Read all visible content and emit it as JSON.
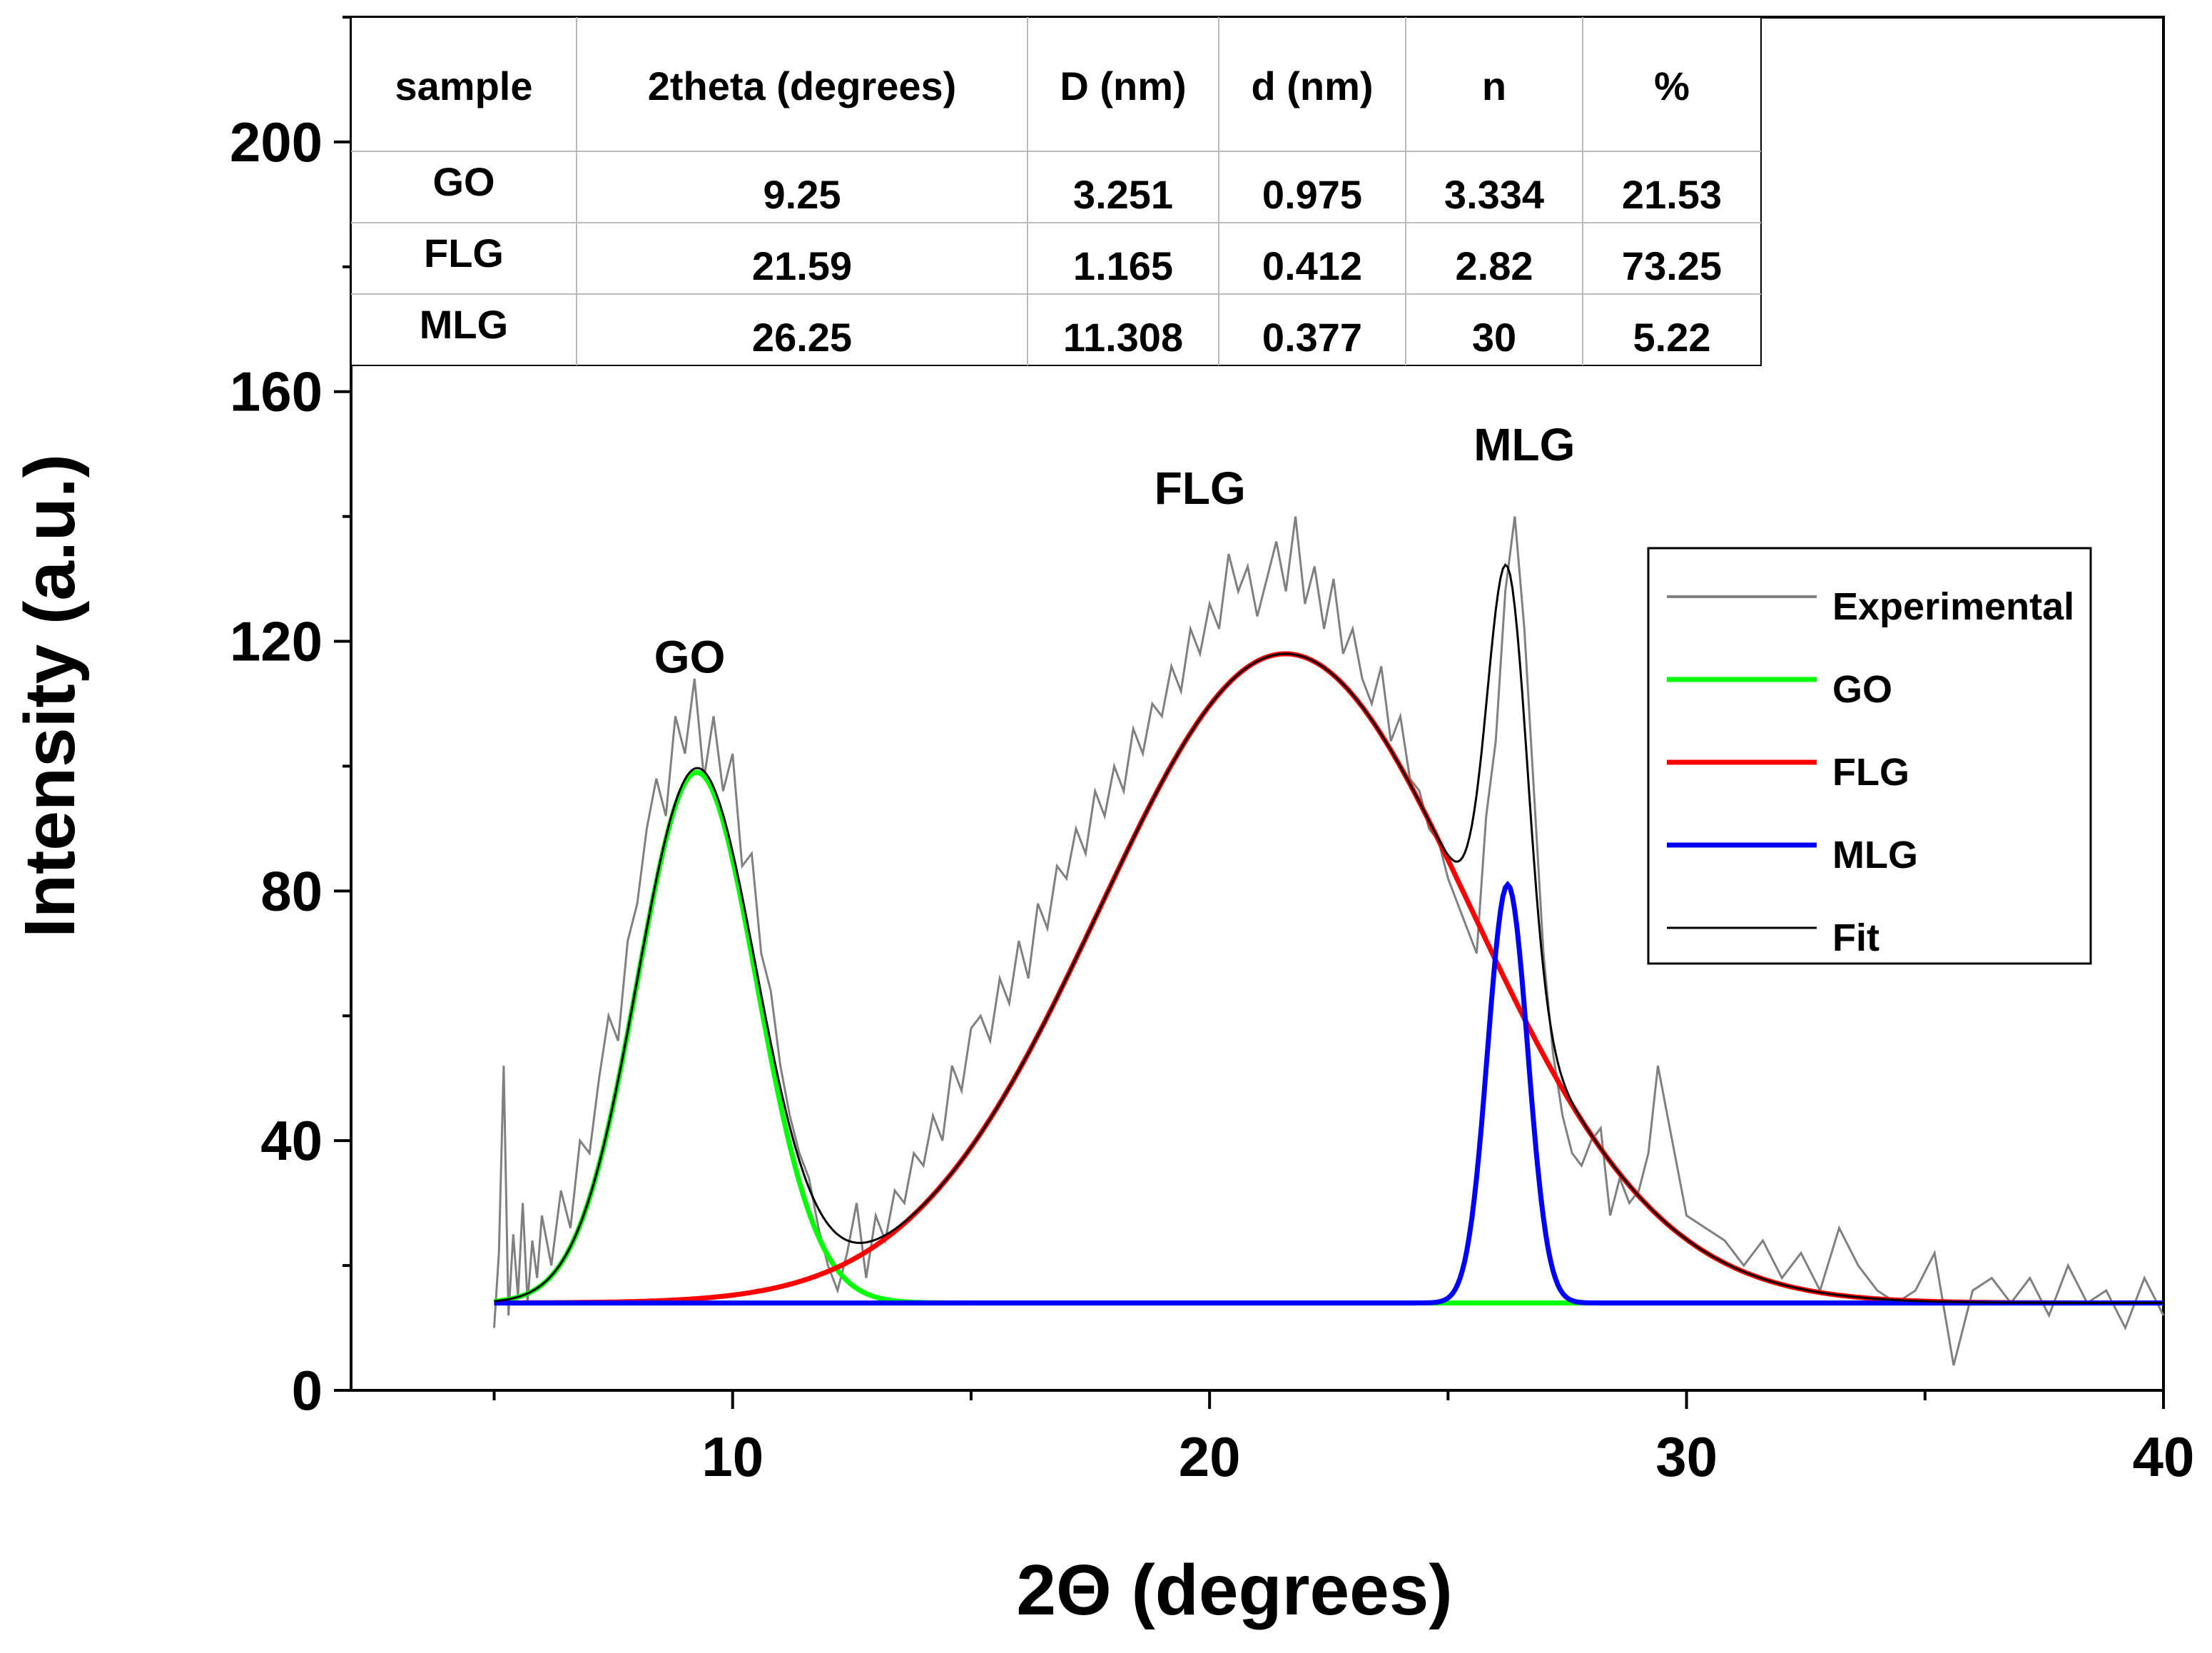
{
  "chart_data": {
    "type": "line",
    "title": "",
    "xlabel": "2Θ (degrees)",
    "ylabel": "Intensity (a.u.)",
    "xlim": [
      2,
      40
    ],
    "ylim": [
      0,
      220
    ],
    "x_ticks": [
      10,
      20,
      30,
      40
    ],
    "y_ticks": [
      0,
      40,
      80,
      120,
      160,
      200
    ],
    "baseline": 14,
    "series": [
      {
        "name": "Experimental",
        "color": "#808080",
        "x": [
          5.0,
          5.1,
          5.2,
          5.3,
          5.4,
          5.5,
          5.6,
          5.7,
          5.8,
          5.9,
          6.0,
          6.2,
          6.4,
          6.6,
          6.8,
          7.0,
          7.2,
          7.4,
          7.6,
          7.8,
          8.0,
          8.2,
          8.4,
          8.6,
          8.8,
          9.0,
          9.2,
          9.4,
          9.6,
          9.8,
          10.0,
          10.2,
          10.4,
          10.6,
          10.8,
          11.0,
          11.2,
          11.4,
          11.6,
          11.8,
          12.0,
          12.2,
          12.4,
          12.6,
          12.8,
          13.0,
          13.2,
          13.4,
          13.6,
          13.8,
          14.0,
          14.2,
          14.4,
          14.6,
          14.8,
          15.0,
          15.2,
          15.4,
          15.6,
          15.8,
          16.0,
          16.2,
          16.4,
          16.6,
          16.8,
          17.0,
          17.2,
          17.4,
          17.6,
          17.8,
          18.0,
          18.2,
          18.4,
          18.6,
          18.8,
          19.0,
          19.2,
          19.4,
          19.6,
          19.8,
          20.0,
          20.2,
          20.4,
          20.6,
          20.8,
          21.0,
          21.2,
          21.4,
          21.6,
          21.8,
          22.0,
          22.2,
          22.4,
          22.6,
          22.8,
          23.0,
          23.2,
          23.4,
          23.6,
          23.8,
          24.0,
          24.2,
          24.4,
          24.6,
          24.8,
          25.0,
          25.2,
          25.4,
          25.6,
          25.8,
          26.0,
          26.2,
          26.4,
          26.6,
          26.8,
          27.0,
          27.2,
          27.4,
          27.6,
          27.8,
          28.0,
          28.2,
          28.4,
          28.6,
          28.8,
          29.0,
          29.2,
          29.4,
          29.6,
          29.8,
          30.0,
          30.4,
          30.8,
          31.2,
          31.6,
          32.0,
          32.4,
          32.8,
          33.2,
          33.6,
          34.0,
          34.4,
          34.8,
          35.2,
          35.6,
          36.0,
          36.4,
          36.8,
          37.2,
          37.6,
          38.0,
          38.4,
          38.8,
          39.2,
          39.6,
          40.0
        ],
        "y": [
          10,
          22,
          52,
          12,
          25,
          15,
          30,
          14,
          24,
          18,
          28,
          20,
          32,
          26,
          40,
          38,
          50,
          60,
          56,
          72,
          78,
          90,
          98,
          92,
          108,
          102,
          114,
          98,
          108,
          96,
          102,
          84,
          86,
          70,
          64,
          52,
          44,
          38,
          34,
          26,
          20,
          16,
          22,
          30,
          18,
          28,
          24,
          32,
          30,
          38,
          36,
          44,
          40,
          52,
          48,
          58,
          60,
          56,
          66,
          62,
          72,
          66,
          78,
          74,
          84,
          82,
          90,
          86,
          96,
          92,
          100,
          96,
          106,
          102,
          110,
          108,
          116,
          112,
          122,
          118,
          126,
          122,
          134,
          128,
          132,
          124,
          130,
          136,
          128,
          140,
          126,
          132,
          122,
          130,
          118,
          122,
          114,
          110,
          116,
          104,
          108,
          98,
          96,
          90,
          88,
          82,
          78,
          74,
          70,
          92,
          104,
          128,
          140,
          122,
          96,
          70,
          54,
          44,
          38,
          36,
          40,
          42,
          28,
          34,
          30,
          32,
          38,
          52,
          44,
          36,
          28,
          26,
          24,
          20,
          24,
          18,
          22,
          16,
          26,
          20,
          16,
          14,
          16,
          22,
          4,
          16,
          18,
          14,
          18,
          12,
          20,
          14,
          16,
          10,
          18,
          12
        ]
      },
      {
        "name": "GO",
        "color": "#00ff00",
        "center": 9.25,
        "amplitude": 85,
        "sigma": 1.25
      },
      {
        "name": "FLG",
        "color": "#ff0000",
        "center": 21.59,
        "amplitude": 104,
        "sigma": 3.9
      },
      {
        "name": "MLG",
        "color": "#0000ff",
        "center": 26.25,
        "amplitude": 67,
        "sigma": 0.42
      },
      {
        "name": "Fit",
        "color": "#000000",
        "sum_of": [
          "GO",
          "FLG",
          "MLG"
        ]
      }
    ],
    "annotations": [
      {
        "text": "GO",
        "x": 9.1,
        "y": 115
      },
      {
        "text": "FLG",
        "x": 19.8,
        "y": 142
      },
      {
        "text": "MLG",
        "x": 26.6,
        "y": 149
      }
    ],
    "legend": {
      "position": "right",
      "entries": [
        "Experimental",
        "GO",
        "FLG",
        "MLG",
        "Fit"
      ]
    },
    "table": {
      "headers": [
        "sample",
        "2theta (degrees)",
        "D (nm)",
        "d (nm)",
        "n",
        "%"
      ],
      "rows": [
        [
          "GO",
          "9.25",
          "3.251",
          "0.975",
          "3.334",
          "21.53"
        ],
        [
          "FLG",
          "21.59",
          "1.165",
          "0.412",
          "2.82",
          "73.25"
        ],
        [
          "MLG",
          "26.25",
          "11.308",
          "0.377",
          "30",
          "5.22"
        ]
      ]
    }
  }
}
